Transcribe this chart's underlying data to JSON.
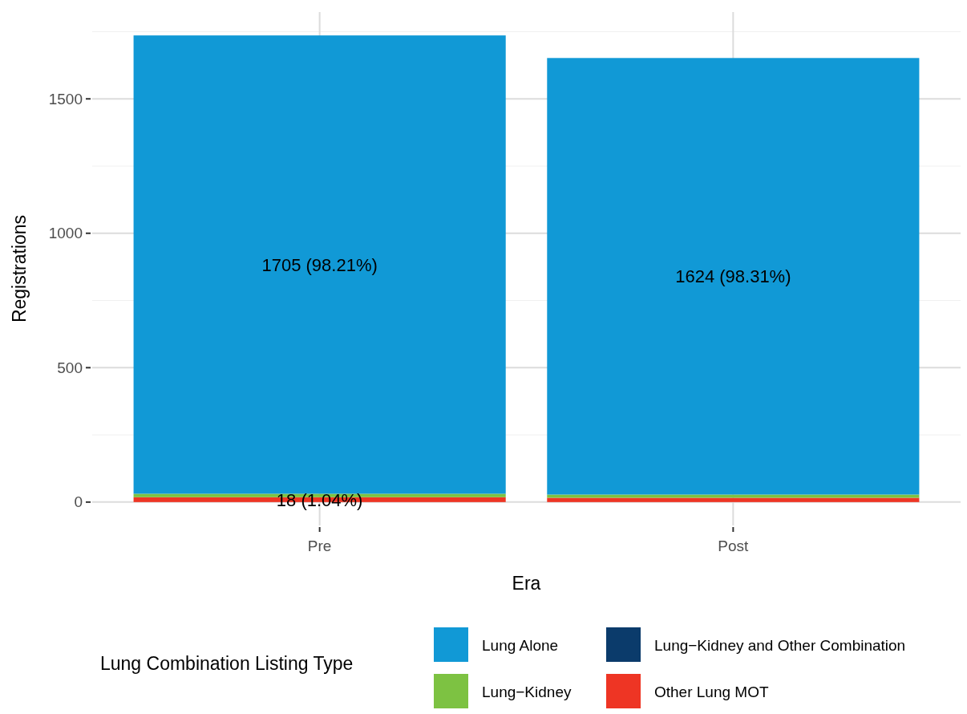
{
  "chart_data": {
    "type": "bar",
    "stacked": true,
    "xlabel": "Era",
    "ylabel": "Registrations",
    "legend_title": "Lung Combination Listing Type",
    "categories": [
      "Pre",
      "Post"
    ],
    "series": [
      {
        "name": "Other Lung MOT",
        "color": "#ee3524",
        "values": [
          18,
          16
        ],
        "value_labels": [
          "18 (1.04%)",
          null
        ]
      },
      {
        "name": "Lung−Kidney and Other Combination",
        "color": "#0b3b6b",
        "values": [
          0,
          0
        ]
      },
      {
        "name": "Lung−Kidney",
        "color": "#7dc242",
        "values": [
          13,
          12
        ]
      },
      {
        "name": "Lung Alone",
        "color": "#1199d6",
        "values": [
          1705,
          1624
        ],
        "value_labels": [
          "1705 (98.21%)",
          "1624 (98.31%)"
        ]
      }
    ],
    "ylim": [
      -87,
      1823
    ],
    "yticks": [
      0,
      {
        "value": 250,
        "label": null
      },
      500,
      {
        "value": 750,
        "label": null
      },
      1000,
      {
        "value": 1250,
        "label": null
      },
      1500,
      {
        "value": 1750,
        "label": null
      }
    ],
    "grid": true,
    "legend": "bottom"
  }
}
